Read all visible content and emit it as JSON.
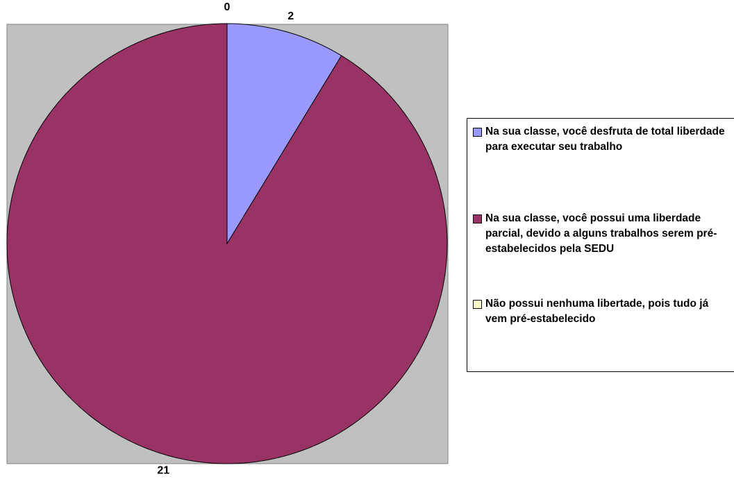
{
  "chart_data": {
    "type": "pie",
    "categories": [
      "Na sua classe, você desfruta de total liberdade para executar seu trabalho",
      "Na sua classe, você possui uma liberdade parcial, devido a alguns trabalhos serem pré-estabelecidos pela SEDU",
      "Não possui nenhuma libertade, pois tudo já vem pré-estabelecido"
    ],
    "values": [
      2,
      21,
      0
    ],
    "colors": [
      "#9999ff",
      "#993366",
      "#ffffcc"
    ],
    "legend": "right"
  }
}
